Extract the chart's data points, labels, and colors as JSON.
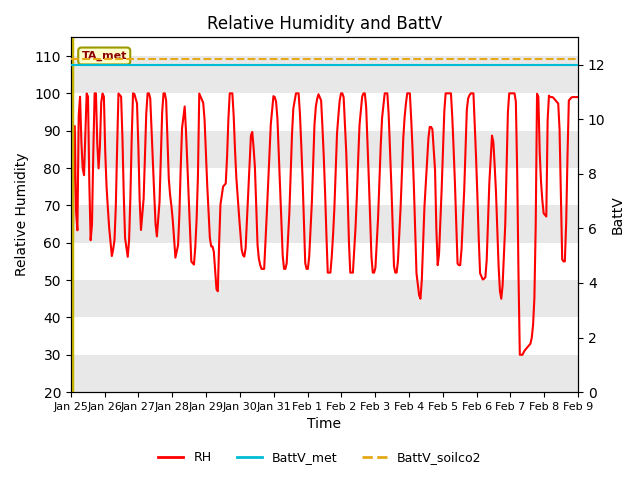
{
  "title": "Relative Humidity and BattV",
  "xlabel": "Time",
  "ylabel_left": "Relative Humidity",
  "ylabel_right": "BattV",
  "ylim_left": [
    20,
    115
  ],
  "ylim_right": [
    0,
    13
  ],
  "yticks_left": [
    20,
    30,
    40,
    50,
    60,
    70,
    80,
    90,
    100,
    110
  ],
  "yticks_right": [
    0,
    2,
    4,
    6,
    8,
    10,
    12
  ],
  "x_tick_labels": [
    "Jan 25",
    "Jan 26",
    "Jan 27",
    "Jan 28",
    "Jan 29",
    "Jan 30",
    "Jan 31",
    "Feb 1",
    "Feb 2",
    "Feb 3",
    "Feb 4",
    "Feb 5",
    "Feb 6",
    "Feb 7",
    "Feb 8",
    "Feb 9"
  ],
  "rh_color": "#ff0000",
  "battv_met_color": "#00bcd4",
  "battv_soilco2_color": "#e6a817",
  "annotation_text": "TA_met",
  "plot_bg_color": "#ffffff",
  "band_color": "#e8e8e8",
  "rh_linewidth": 1.5,
  "battv_linewidth": 1.5,
  "battv_met_val": 12.0,
  "battv_soilco2_val": 12.2,
  "vline_x": 0.04,
  "vline_color": "#c8b400"
}
